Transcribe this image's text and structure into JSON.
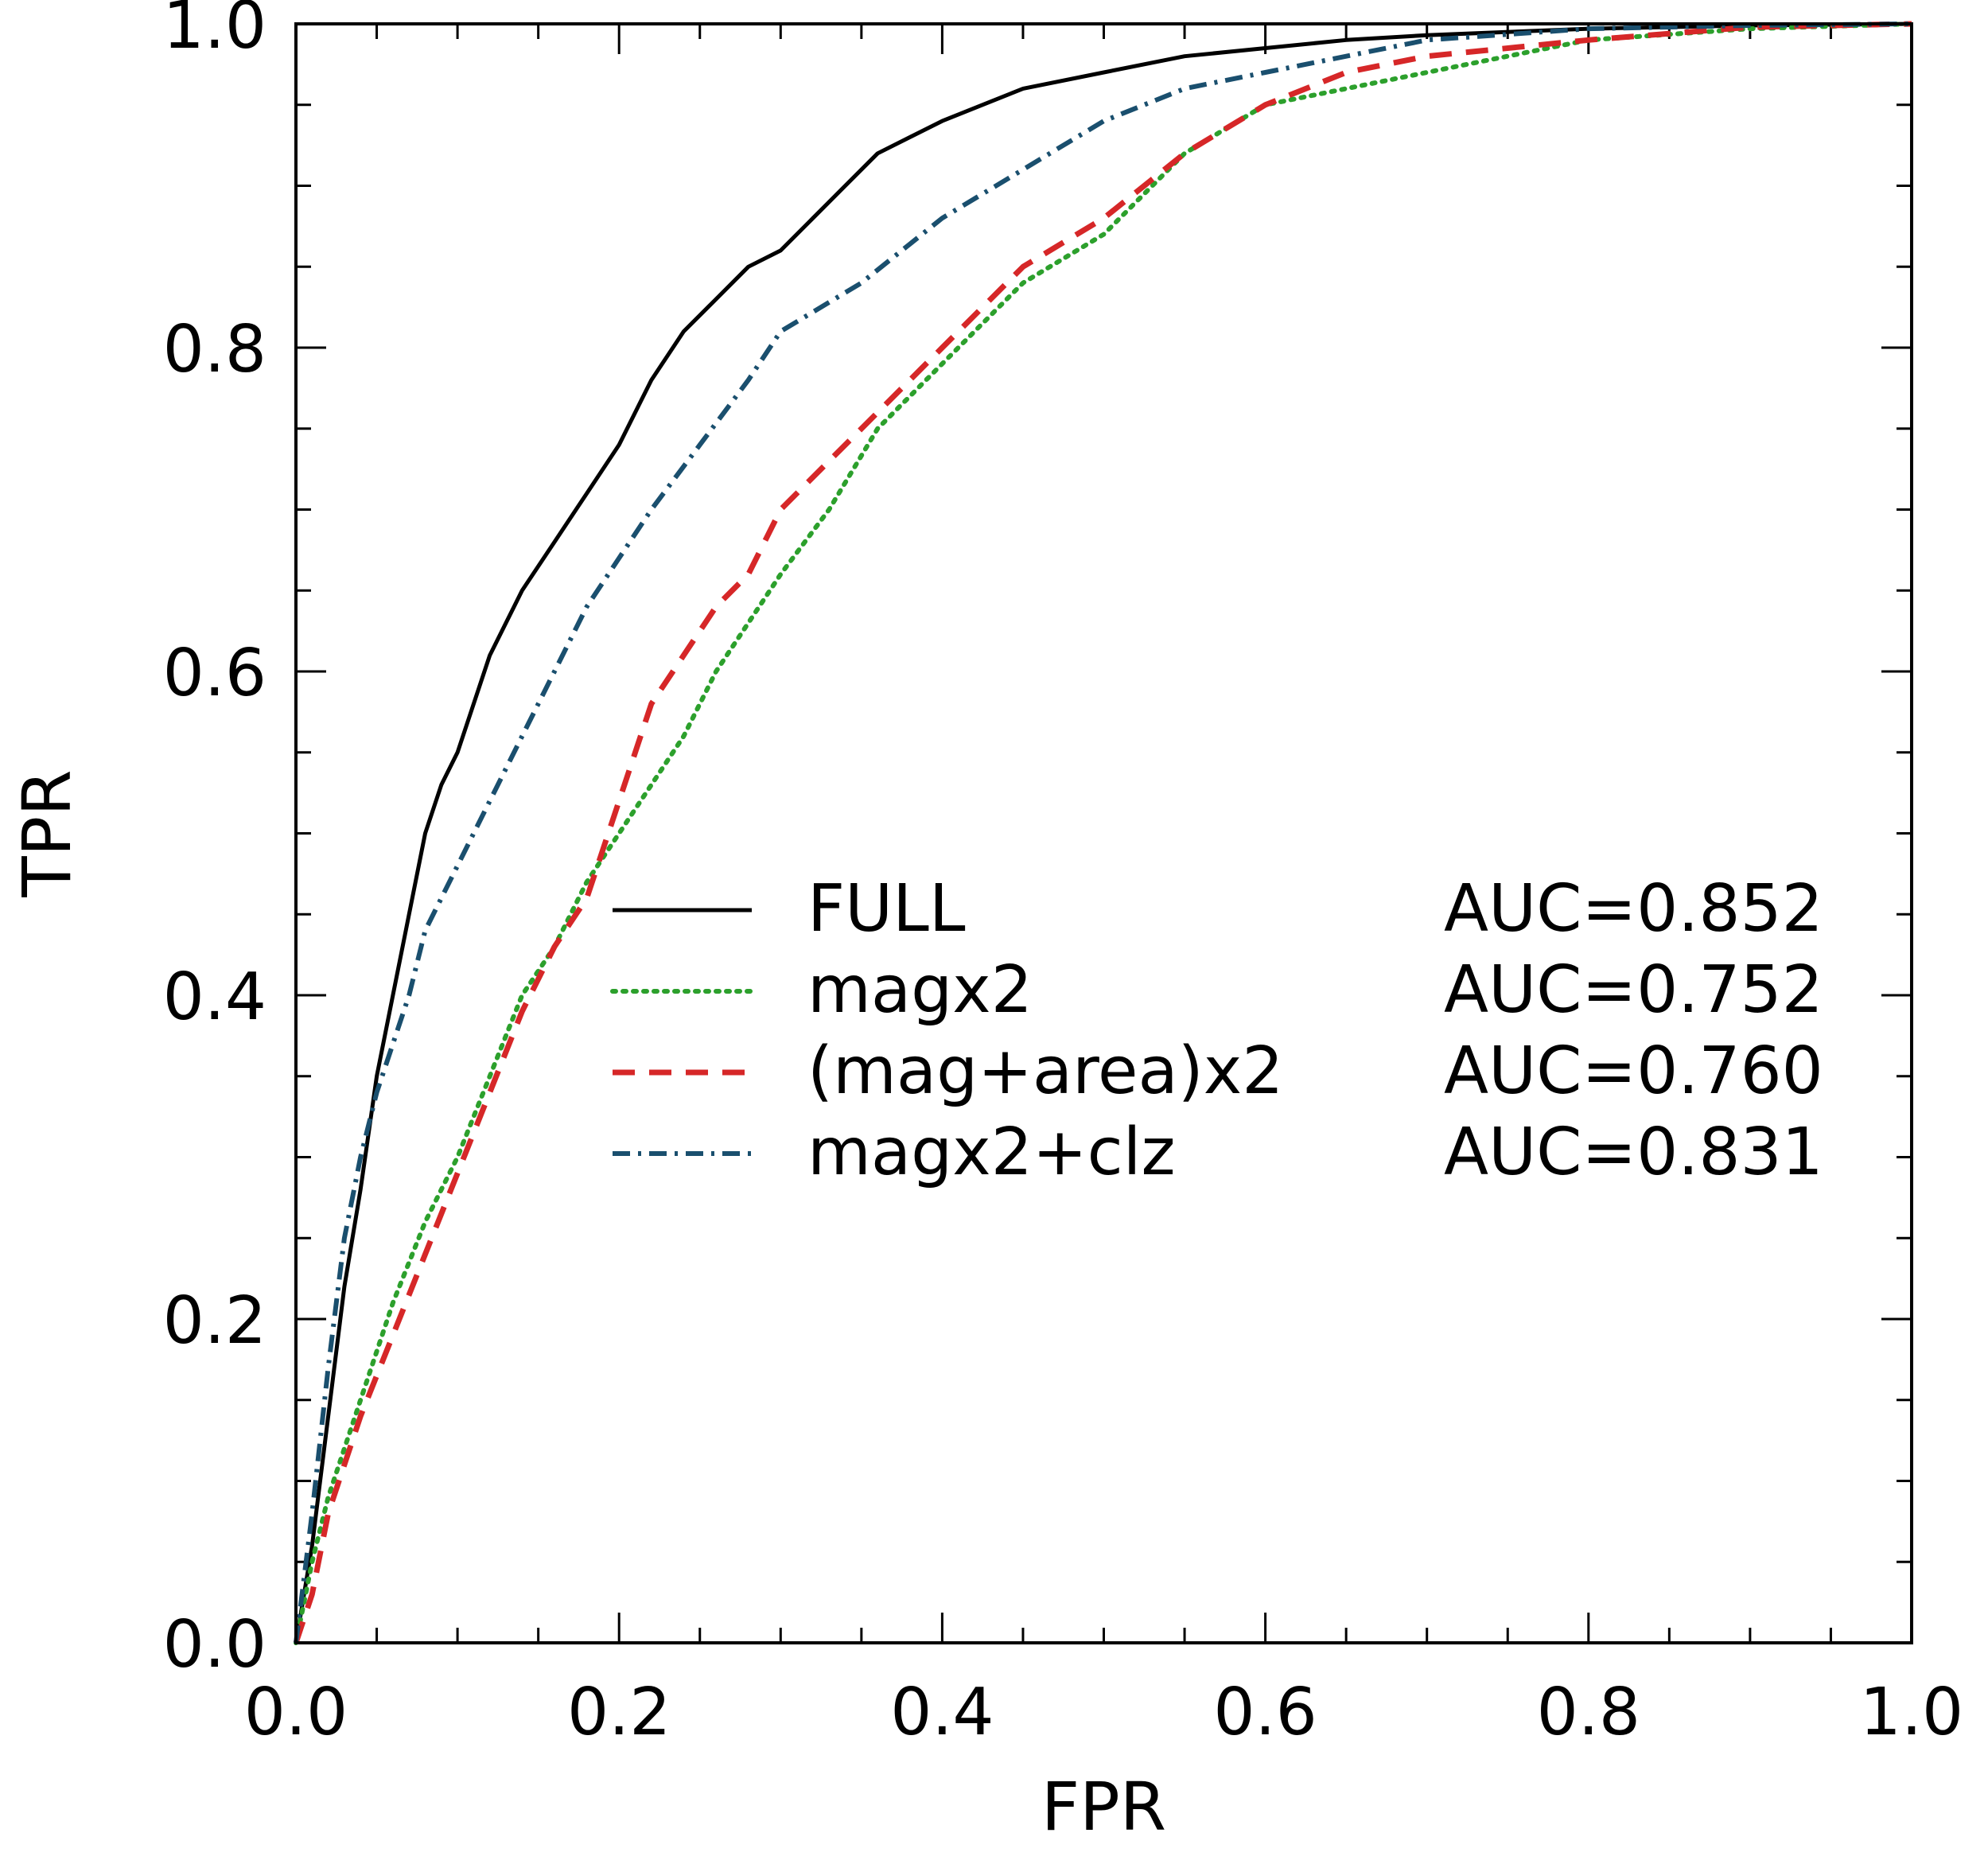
{
  "chart_data": {
    "type": "line",
    "title": "",
    "xlabel": "FPR",
    "ylabel": "TPR",
    "xlim": [
      0.0,
      1.0
    ],
    "ylim": [
      0.0,
      1.0
    ],
    "xticks": [
      "0.0",
      "0.2",
      "0.4",
      "0.6",
      "0.8",
      "1.0"
    ],
    "yticks": [
      "0.0",
      "0.2",
      "0.4",
      "0.6",
      "0.8",
      "1.0"
    ],
    "grid": false,
    "legend_position": "center-right",
    "series": [
      {
        "name": "FULL",
        "auc_label": "AUC=0.852",
        "color": "#000000",
        "style": "solid",
        "x": [
          0,
          0.005,
          0.01,
          0.02,
          0.03,
          0.04,
          0.05,
          0.06,
          0.07,
          0.08,
          0.09,
          0.1,
          0.12,
          0.14,
          0.16,
          0.18,
          0.2,
          0.22,
          0.24,
          0.26,
          0.28,
          0.3,
          0.32,
          0.34,
          0.36,
          0.4,
          0.45,
          0.5,
          0.55,
          0.6,
          0.65,
          0.7,
          0.8,
          0.9,
          1.0
        ],
        "y": [
          0,
          0.03,
          0.06,
          0.14,
          0.22,
          0.28,
          0.35,
          0.4,
          0.45,
          0.5,
          0.53,
          0.55,
          0.61,
          0.65,
          0.68,
          0.71,
          0.74,
          0.78,
          0.81,
          0.83,
          0.85,
          0.86,
          0.88,
          0.9,
          0.92,
          0.94,
          0.96,
          0.97,
          0.98,
          0.985,
          0.99,
          0.993,
          0.997,
          0.999,
          1.0
        ]
      },
      {
        "name": "magx2",
        "auc_label": "AUC=0.752",
        "color": "#2ca02c",
        "style": "dotted",
        "x": [
          0,
          0.01,
          0.02,
          0.04,
          0.06,
          0.08,
          0.1,
          0.12,
          0.14,
          0.16,
          0.18,
          0.2,
          0.22,
          0.24,
          0.26,
          0.28,
          0.3,
          0.33,
          0.36,
          0.4,
          0.45,
          0.5,
          0.55,
          0.6,
          0.65,
          0.7,
          0.8,
          0.9,
          1.0
        ],
        "y": [
          0,
          0.05,
          0.09,
          0.15,
          0.21,
          0.26,
          0.3,
          0.35,
          0.4,
          0.43,
          0.47,
          0.5,
          0.53,
          0.56,
          0.6,
          0.63,
          0.66,
          0.7,
          0.75,
          0.79,
          0.84,
          0.87,
          0.92,
          0.95,
          0.96,
          0.97,
          0.99,
          0.997,
          1.0
        ]
      },
      {
        "name": "(mag+area)x2",
        "auc_label": "AUC=0.760",
        "color": "#d62728",
        "style": "dashed",
        "x": [
          0,
          0.01,
          0.02,
          0.04,
          0.06,
          0.08,
          0.1,
          0.12,
          0.14,
          0.16,
          0.18,
          0.2,
          0.22,
          0.24,
          0.26,
          0.28,
          0.3,
          0.33,
          0.36,
          0.4,
          0.45,
          0.5,
          0.55,
          0.6,
          0.65,
          0.7,
          0.8,
          0.9,
          1.0
        ],
        "y": [
          0,
          0.03,
          0.08,
          0.14,
          0.19,
          0.24,
          0.29,
          0.34,
          0.39,
          0.43,
          0.46,
          0.52,
          0.58,
          0.61,
          0.64,
          0.66,
          0.7,
          0.73,
          0.76,
          0.8,
          0.85,
          0.88,
          0.92,
          0.95,
          0.97,
          0.98,
          0.99,
          0.998,
          1.0
        ]
      },
      {
        "name": "magx2+clz",
        "auc_label": "AUC=0.831",
        "color": "#1a4f6e",
        "style": "dashdot",
        "x": [
          0,
          0.005,
          0.01,
          0.02,
          0.03,
          0.04,
          0.05,
          0.06,
          0.07,
          0.08,
          0.1,
          0.12,
          0.14,
          0.16,
          0.18,
          0.2,
          0.22,
          0.25,
          0.28,
          0.3,
          0.35,
          0.4,
          0.45,
          0.5,
          0.55,
          0.6,
          0.65,
          0.7,
          0.8,
          0.9,
          1.0
        ],
        "y": [
          0,
          0.04,
          0.08,
          0.17,
          0.25,
          0.3,
          0.34,
          0.37,
          0.4,
          0.44,
          0.48,
          0.52,
          0.56,
          0.6,
          0.64,
          0.67,
          0.7,
          0.74,
          0.78,
          0.81,
          0.84,
          0.88,
          0.91,
          0.94,
          0.96,
          0.97,
          0.98,
          0.99,
          0.997,
          0.999,
          1.0
        ]
      }
    ]
  }
}
